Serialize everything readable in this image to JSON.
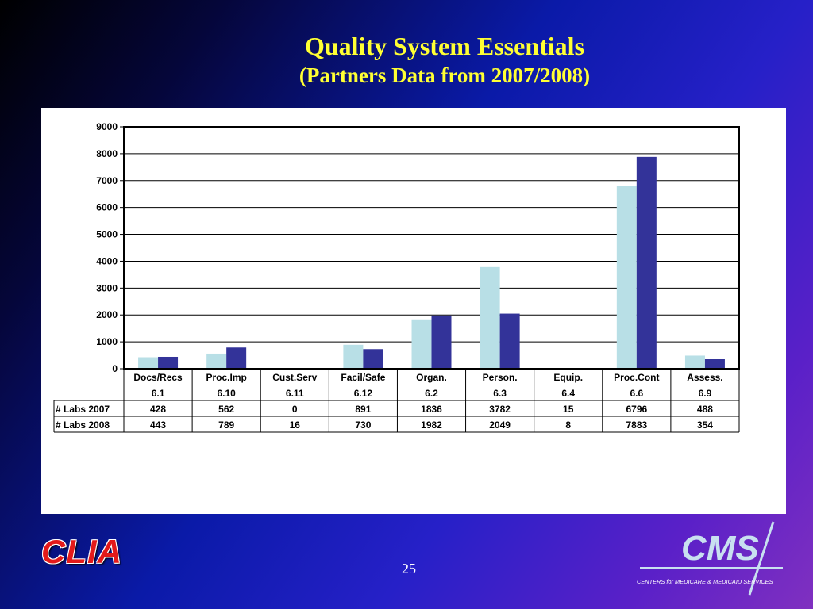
{
  "slide": {
    "title": "Quality System Essentials",
    "subtitle": "(Partners Data from 2007/2008)",
    "page_number": "25",
    "left_logo_text": "CLIA",
    "right_logo_text": "CMS",
    "right_logo_tagline": "CENTERS for MEDICARE & MEDICAID SERVICES"
  },
  "colors": {
    "series_2007": "#b8dfe6",
    "series_2008": "#333399",
    "title": "#ffff33"
  },
  "chart_data": {
    "type": "bar",
    "categories": [
      "Docs/Recs",
      "Proc.Imp",
      "Cust.Serv",
      "Facil/Safe",
      "Organ.",
      "Person.",
      "Equip.",
      "Proc.Cont",
      "Assess."
    ],
    "category_codes": [
      "6.1",
      "6.10",
      "6.11",
      "6.12",
      "6.2",
      "6.3",
      "6.4",
      "6.6",
      "6.9"
    ],
    "series": [
      {
        "name": "# Labs 2007",
        "values": [
          428,
          562,
          0,
          891,
          1836,
          3782,
          15,
          6796,
          488
        ]
      },
      {
        "name": "# Labs 2008",
        "values": [
          443,
          789,
          16,
          730,
          1982,
          2049,
          8,
          7883,
          354
        ]
      }
    ],
    "ylim": [
      0,
      9000
    ],
    "yticks": [
      0,
      1000,
      2000,
      3000,
      4000,
      5000,
      6000,
      7000,
      8000,
      9000
    ],
    "grid": true,
    "legend": "data-table"
  }
}
